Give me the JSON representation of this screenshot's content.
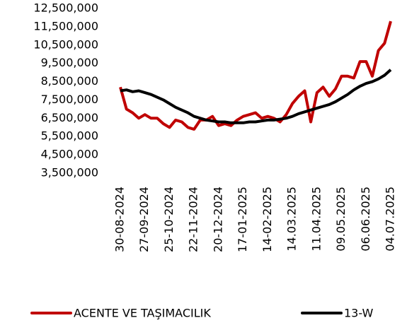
{
  "chart_data": {
    "type": "line",
    "categories": [
      "30-08-2024",
      null,
      null,
      null,
      "27-09-2024",
      null,
      null,
      null,
      "25-10-2024",
      null,
      null,
      null,
      "22-11-2024",
      null,
      null,
      null,
      "20-12-2024",
      null,
      null,
      null,
      "17-01-2025",
      null,
      null,
      null,
      "14-02-2025",
      null,
      null,
      null,
      "14.03.2025",
      null,
      null,
      null,
      "11.04.2025",
      null,
      null,
      null,
      "09.05.2025",
      null,
      null,
      null,
      "06.06.2025",
      null,
      null,
      null,
      "04.07.2025"
    ],
    "series": [
      {
        "name": "ACENTE VE TAŞIMACILIK",
        "color": "#c00000",
        "values": [
          8200000,
          7000000,
          6800000,
          6500000,
          6700000,
          6500000,
          6500000,
          6200000,
          6000000,
          6400000,
          6300000,
          6000000,
          5900000,
          6400000,
          6400000,
          6600000,
          6100000,
          6200000,
          6100000,
          6400000,
          6600000,
          6700000,
          6800000,
          6500000,
          6600000,
          6500000,
          6300000,
          6700000,
          7300000,
          7700000,
          8000000,
          6300000,
          7900000,
          8200000,
          7700000,
          8100000,
          8800000,
          8800000,
          8700000,
          9600000,
          9600000,
          8800000,
          10200000,
          10600000,
          11800000
        ]
      },
      {
        "name": "13-W",
        "color": "#000000",
        "values": [
          8000000,
          8050000,
          7950000,
          8000000,
          7900000,
          7800000,
          7650000,
          7500000,
          7300000,
          7100000,
          6950000,
          6800000,
          6600000,
          6500000,
          6400000,
          6350000,
          6300000,
          6300000,
          6250000,
          6250000,
          6250000,
          6300000,
          6300000,
          6350000,
          6400000,
          6400000,
          6450000,
          6500000,
          6600000,
          6750000,
          6850000,
          6950000,
          7050000,
          7150000,
          7250000,
          7400000,
          7600000,
          7800000,
          8050000,
          8250000,
          8400000,
          8500000,
          8650000,
          8850000,
          9150000
        ]
      }
    ],
    "ylim": [
      3500000,
      12500000
    ],
    "yticks": [
      {
        "value": 3500000,
        "label": "3,500,000"
      },
      {
        "value": 4500000,
        "label": "4,500,000"
      },
      {
        "value": 5500000,
        "label": "5,500,000"
      },
      {
        "value": 6500000,
        "label": "6,500,000"
      },
      {
        "value": 7500000,
        "label": "7,500,000"
      },
      {
        "value": 8500000,
        "label": "8,500,000"
      },
      {
        "value": 9500000,
        "label": "9,500,000"
      },
      {
        "value": 10500000,
        "label": "10,500,000"
      },
      {
        "value": 11500000,
        "label": "11,500,000"
      },
      {
        "value": 12500000,
        "label": "12,500,000"
      }
    ],
    "grid": false
  }
}
